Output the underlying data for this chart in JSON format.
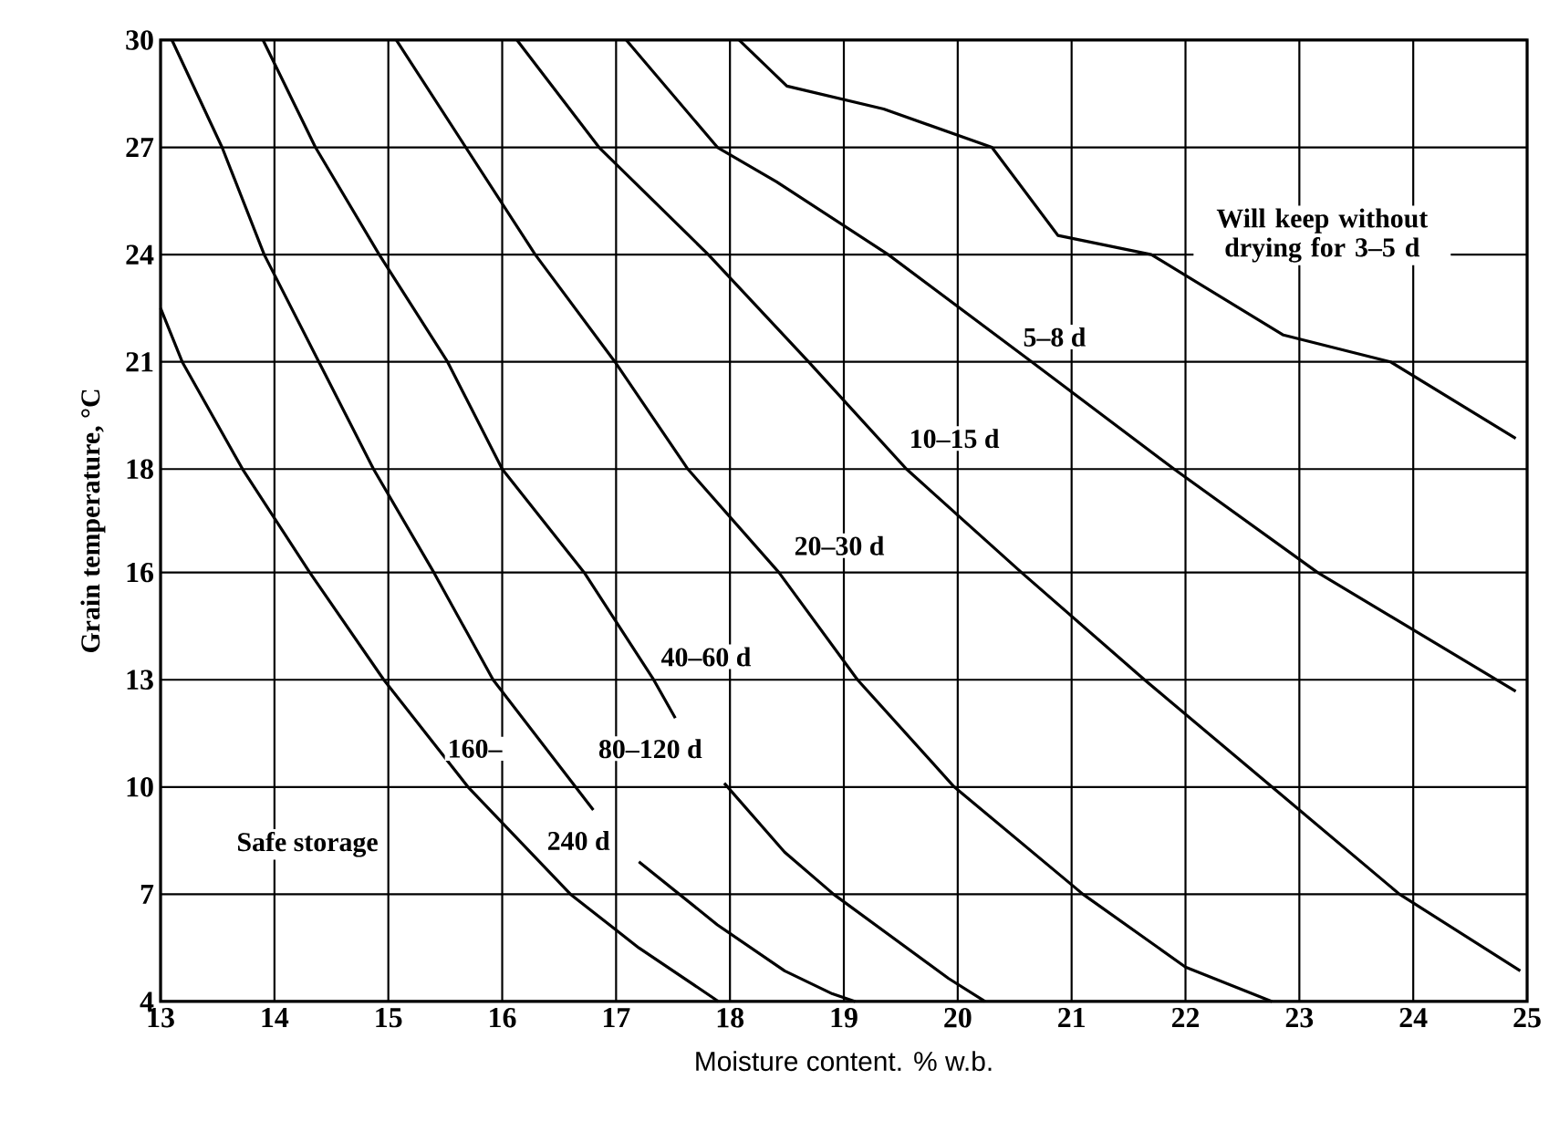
{
  "chart_data": {
    "type": "line",
    "xlabel": "Moisture content. % w.b.",
    "ylabel": "Grain temperature, °C",
    "xlim": [
      13,
      25
    ],
    "xticks": [
      13,
      14,
      15,
      16,
      17,
      18,
      19,
      20,
      21,
      22,
      23,
      24,
      25
    ],
    "ylim": [
      4.4,
      29.5
    ],
    "yticks": [
      {
        "value": 4.4,
        "label": "4"
      },
      {
        "value": 7.2,
        "label": "7"
      },
      {
        "value": 10,
        "label": "10"
      },
      {
        "value": 12.8,
        "label": "13"
      },
      {
        "value": 15.6,
        "label": "16"
      },
      {
        "value": 18.3,
        "label": "18"
      },
      {
        "value": 21.1,
        "label": "21"
      },
      {
        "value": 23.9,
        "label": "24"
      },
      {
        "value": 26.7,
        "label": "27"
      },
      {
        "value": 29.5,
        "label": "30"
      }
    ],
    "grid": true,
    "series": [
      {
        "color": "#000000",
        "x": [
          13,
          13.19,
          13.72,
          14.31,
          14.96,
          15.7,
          16.6,
          17.2,
          17.9
        ],
        "values": [
          22.5,
          21.1,
          18.3,
          15.6,
          12.8,
          10,
          7.2,
          5.8,
          4.4
        ]
      },
      {
        "color": "#000000",
        "x": [
          13.1,
          13.54,
          13.91,
          14.39,
          14.87,
          15.4,
          15.92,
          16.8,
          17.0,
          17.2,
          17.89,
          18.48,
          18.9,
          19.1
        ],
        "values": [
          29.5,
          26.7,
          23.9,
          21.1,
          18.3,
          15.6,
          12.8,
          9.4,
          null,
          8.05,
          6.4,
          5.2,
          4.6,
          4.4
        ]
      },
      {
        "color": "#000000",
        "x": [
          13.9,
          14.36,
          14.92,
          15.52,
          16.0,
          16.72,
          17.33,
          17.52,
          17.7,
          17.95,
          18.48,
          18.91,
          19.92,
          20.24
        ],
        "values": [
          29.5,
          26.7,
          23.9,
          21.1,
          18.3,
          15.6,
          12.8,
          11.8,
          null,
          10.1,
          8.3,
          7.2,
          5.0,
          4.4
        ]
      },
      {
        "color": "#000000",
        "x": [
          15.07,
          15.68,
          16.29,
          16.99,
          17.63,
          18.43,
          19.12,
          19.97,
          21.1,
          22.0,
          22.76
        ],
        "values": [
          29.5,
          26.7,
          23.9,
          21.1,
          18.3,
          15.6,
          12.8,
          10,
          7.2,
          5.3,
          4.4
        ]
      },
      {
        "color": "#000000",
        "x": [
          16.13,
          16.85,
          17.81,
          18.69,
          19.55,
          20.56,
          21.64,
          22.76,
          23.88,
          24.94
        ],
        "values": [
          29.5,
          26.7,
          23.9,
          21.1,
          18.3,
          15.6,
          12.8,
          10,
          7.2,
          5.2
        ]
      },
      {
        "color": "#000000",
        "x": [
          17.09,
          17.89,
          18.41,
          19.39,
          20.65,
          21.9,
          23.16,
          24.9
        ],
        "values": [
          29.5,
          26.7,
          25.8,
          23.9,
          21.1,
          18.3,
          15.6,
          12.5
        ]
      },
      {
        "color": "#000000",
        "x": [
          18.08,
          18.5,
          19.35,
          20.3,
          20.88,
          21.7,
          22.86,
          23.8,
          24.9
        ],
        "values": [
          29.5,
          28.3,
          27.7,
          26.7,
          24.4,
          23.9,
          21.8,
          21.1,
          19.1
        ]
      }
    ],
    "annotations": [
      "Will keep without drying for 3–5 d",
      "5–8 d",
      "10–15 d",
      "20–30 d",
      "40–60 d",
      "80–120 d",
      "160–",
      "240 d",
      "Safe storage"
    ]
  }
}
